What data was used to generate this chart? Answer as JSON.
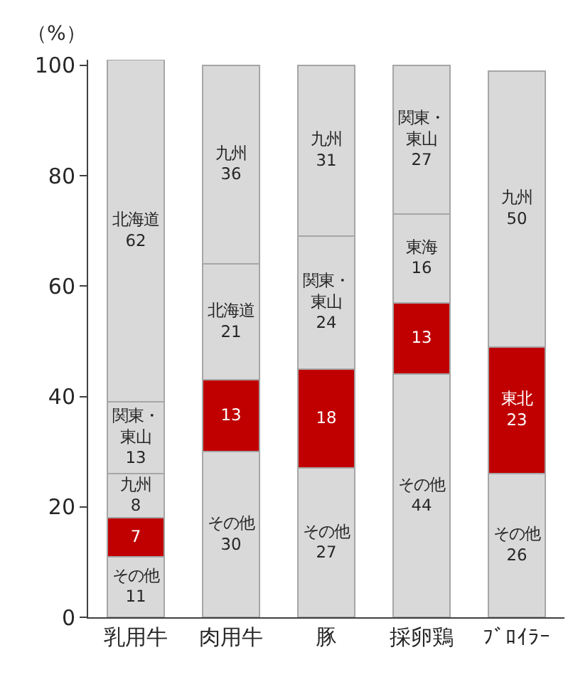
{
  "chart_data": {
    "type": "bar",
    "stacked": true,
    "ylabel": "（%）",
    "categories": [
      "乳用牛",
      "肉用牛",
      "豚",
      "採卵鶏",
      "ﾌﾞﾛｲﾗｰ"
    ],
    "ylim": [
      0,
      101
    ],
    "yticks": [
      0,
      20,
      40,
      60,
      80,
      100
    ],
    "series": [
      {
        "values": [
          11,
          30,
          27,
          44,
          26
        ],
        "color": "#d9d9d9",
        "value_labels": [
          "その他\n11",
          "その他\n30",
          "その他\n27",
          "その他\n44",
          "その他\n26"
        ]
      },
      {
        "values": [
          7,
          13,
          18,
          13,
          23
        ],
        "color": "#c00000",
        "value_labels": [
          "7",
          "13",
          "18",
          "13",
          "東北\n23"
        ]
      },
      {
        "values": [
          8,
          21,
          24,
          16,
          50
        ],
        "color": "#d9d9d9",
        "value_labels": [
          "九州\n8",
          "北海道\n21",
          "関東・東山\n24",
          "東海\n16",
          "九州\n50"
        ]
      },
      {
        "values": [
          13,
          36,
          31,
          27,
          null
        ],
        "color": "#d9d9d9",
        "value_labels": [
          "関東・東山\n13",
          "九州\n36",
          "九州\n31",
          "関東・東山\n27",
          null
        ]
      },
      {
        "values": [
          62,
          null,
          null,
          null,
          null
        ],
        "color": "#d9d9d9",
        "value_labels": [
          "北海道\n62",
          null,
          null,
          null,
          null
        ]
      }
    ]
  }
}
